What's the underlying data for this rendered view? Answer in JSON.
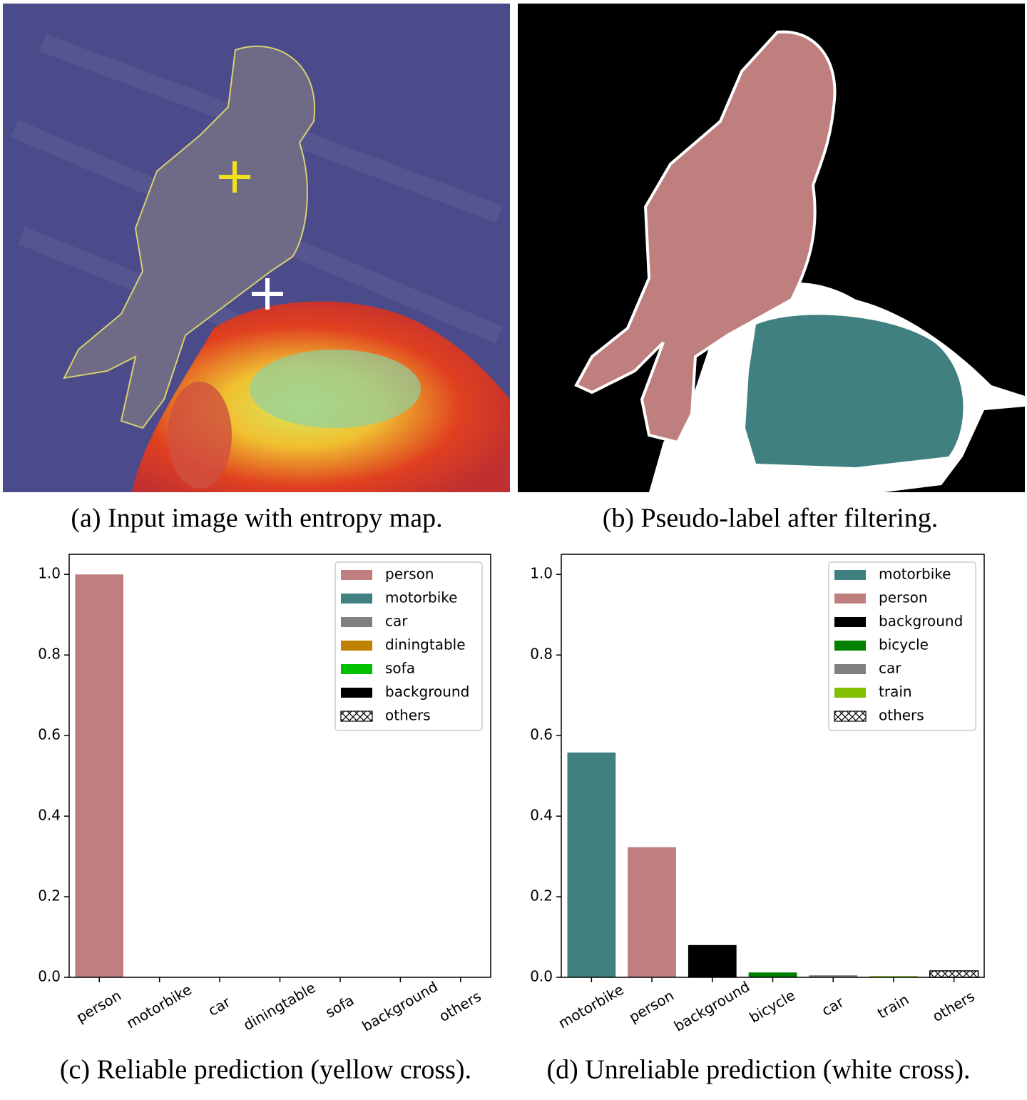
{
  "figure": {
    "panels": [
      {
        "caption": "(a) Input image with entropy map."
      },
      {
        "caption": "(b) Pseudo-label after filtering."
      }
    ]
  },
  "chart_data": [
    {
      "type": "bar",
      "caption": "(c) Reliable prediction (yellow cross).",
      "categories": [
        "person",
        "motorbike",
        "car",
        "diningtable",
        "sofa",
        "background",
        "others"
      ],
      "values": [
        1.0,
        0,
        0,
        0,
        0,
        0,
        0
      ],
      "colors": [
        "#bf7f7f",
        "#408080",
        "#808080",
        "#c08000",
        "#00c000",
        "#000000",
        "#ffffff"
      ],
      "hatches": [
        null,
        null,
        null,
        null,
        null,
        null,
        "xxx"
      ],
      "ylim": [
        0,
        1.05
      ],
      "yticks": [
        {
          "value": 0,
          "label": "0.0"
        },
        0.2,
        0.4,
        0.6,
        0.8,
        {
          "value": 1,
          "label": "1.0"
        }
      ],
      "legend": true,
      "legend_loc": "upper right"
    },
    {
      "type": "bar",
      "caption": "(d) Unreliable prediction (white cross).",
      "categories": [
        "motorbike",
        "person",
        "background",
        "bicycle",
        "car",
        "train",
        "others"
      ],
      "values": [
        0.558,
        0.323,
        0.08,
        0.012,
        0.005,
        0.003,
        0.016
      ],
      "colors": [
        "#408080",
        "#bf7f7f",
        "#000000",
        "#008000",
        "#808080",
        "#80c000",
        "#ffffff"
      ],
      "hatches": [
        null,
        null,
        null,
        null,
        null,
        null,
        "xxx"
      ],
      "ylim": [
        0,
        1.05
      ],
      "yticks": [
        {
          "value": 0,
          "label": "0.0"
        },
        0.2,
        0.4,
        0.6,
        0.8,
        {
          "value": 1,
          "label": "1.0"
        }
      ],
      "legend": true,
      "legend_loc": "upper right"
    }
  ]
}
